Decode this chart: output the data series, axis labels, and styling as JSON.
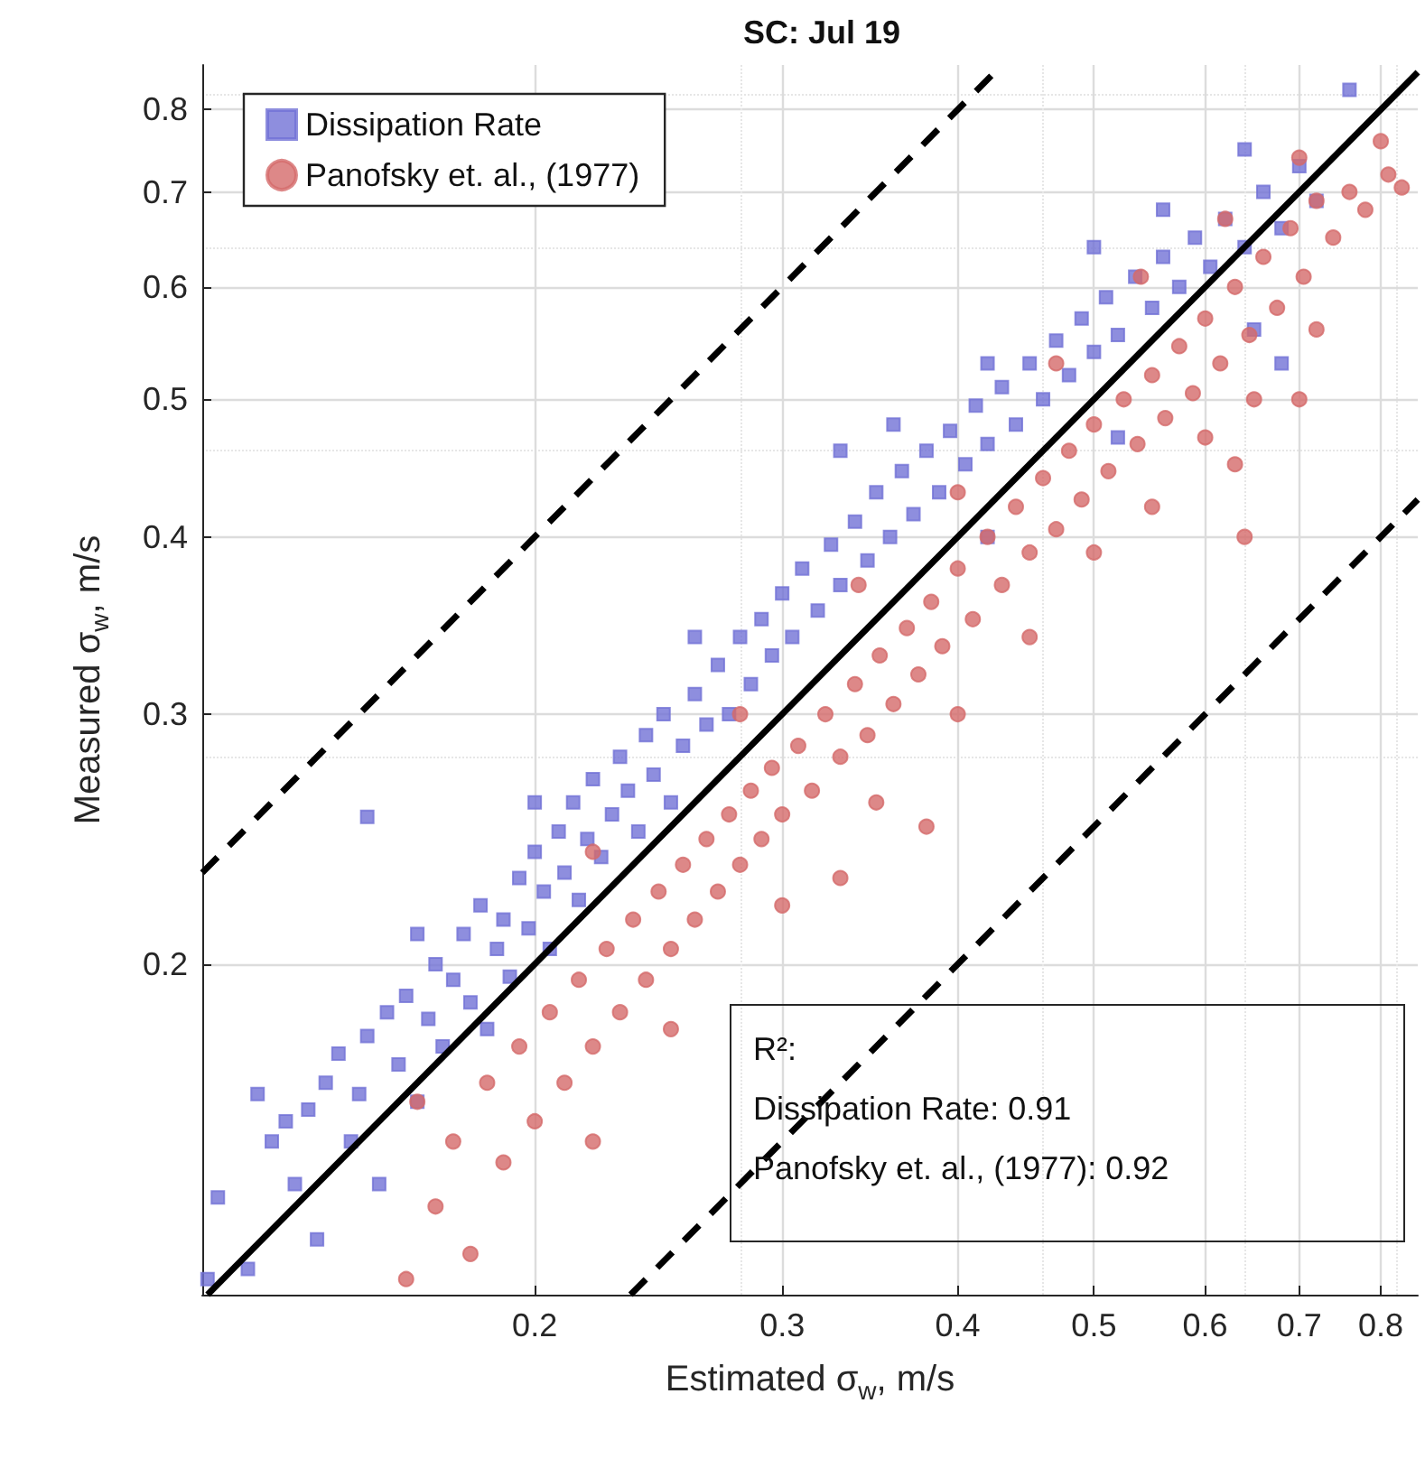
{
  "chart_data": {
    "type": "scatter",
    "title": "SC: Jul 19",
    "xlabel": "Estimated σ$_{w}$, m/s",
    "ylabel": "Measured σ$_{w}$, m/s",
    "log": "xy",
    "grid": true,
    "legend": "top left",
    "xlim": [
      0.116,
      0.85
    ],
    "ylim": [
      0.117,
      0.86
    ],
    "xticks": [
      0.2,
      0.3,
      0.4,
      0.5,
      0.6,
      0.7,
      0.8
    ],
    "yticks": [
      0.2,
      0.3,
      0.4,
      0.5,
      0.6,
      0.7,
      0.8
    ],
    "annotations": [
      "R²:",
      "Dissipation Rate: 0.91",
      "Panofsky et. al., (1977): 0.92"
    ],
    "series": [
      {
        "name": "Dissipation Rate",
        "type": "scatter",
        "marker": "square",
        "color": "#7272d6",
        "x": [
          0.117,
          0.119,
          0.125,
          0.127,
          0.13,
          0.133,
          0.135,
          0.138,
          0.14,
          0.142,
          0.145,
          0.148,
          0.15,
          0.152,
          0.155,
          0.157,
          0.16,
          0.162,
          0.165,
          0.168,
          0.17,
          0.172,
          0.175,
          0.178,
          0.18,
          0.183,
          0.185,
          0.188,
          0.19,
          0.192,
          0.195,
          0.198,
          0.2,
          0.203,
          0.205,
          0.208,
          0.21,
          0.213,
          0.215,
          0.218,
          0.22,
          0.223,
          0.227,
          0.23,
          0.233,
          0.237,
          0.24,
          0.243,
          0.247,
          0.25,
          0.255,
          0.26,
          0.265,
          0.27,
          0.275,
          0.28,
          0.285,
          0.29,
          0.295,
          0.3,
          0.305,
          0.31,
          0.318,
          0.325,
          0.33,
          0.338,
          0.345,
          0.35,
          0.358,
          0.365,
          0.372,
          0.38,
          0.388,
          0.395,
          0.405,
          0.412,
          0.42,
          0.43,
          0.44,
          0.45,
          0.46,
          0.47,
          0.48,
          0.49,
          0.5,
          0.51,
          0.52,
          0.535,
          0.55,
          0.56,
          0.575,
          0.59,
          0.605,
          0.62,
          0.64,
          0.66,
          0.68,
          0.7,
          0.72,
          0.76,
          0.64,
          0.56,
          0.5,
          0.42,
          0.36,
          0.33,
          0.26,
          0.2,
          0.165,
          0.42,
          0.52,
          0.65,
          0.68,
          0.152
        ],
        "values": [
          0.12,
          0.137,
          0.122,
          0.162,
          0.15,
          0.155,
          0.14,
          0.158,
          0.128,
          0.165,
          0.173,
          0.15,
          0.162,
          0.178,
          0.14,
          0.185,
          0.17,
          0.19,
          0.16,
          0.183,
          0.2,
          0.175,
          0.195,
          0.21,
          0.188,
          0.22,
          0.18,
          0.205,
          0.215,
          0.196,
          0.23,
          0.212,
          0.24,
          0.225,
          0.205,
          0.248,
          0.232,
          0.26,
          0.222,
          0.245,
          0.27,
          0.238,
          0.255,
          0.28,
          0.265,
          0.248,
          0.29,
          0.272,
          0.3,
          0.26,
          0.285,
          0.31,
          0.295,
          0.325,
          0.3,
          0.34,
          0.315,
          0.35,
          0.33,
          0.365,
          0.34,
          0.38,
          0.355,
          0.395,
          0.37,
          0.41,
          0.385,
          0.43,
          0.4,
          0.445,
          0.415,
          0.46,
          0.43,
          0.475,
          0.45,
          0.495,
          0.465,
          0.51,
          0.48,
          0.53,
          0.5,
          0.55,
          0.52,
          0.57,
          0.54,
          0.59,
          0.555,
          0.61,
          0.58,
          0.63,
          0.6,
          0.65,
          0.62,
          0.67,
          0.64,
          0.7,
          0.66,
          0.73,
          0.69,
          0.826,
          0.75,
          0.68,
          0.64,
          0.53,
          0.48,
          0.46,
          0.34,
          0.26,
          0.21,
          0.4,
          0.47,
          0.56,
          0.53,
          0.254
        ]
      },
      {
        "name": "Panofsky et. al., (1977)",
        "type": "scatter",
        "marker": "circle",
        "color": "#d46a6a",
        "x": [
          0.162,
          0.165,
          0.17,
          0.175,
          0.18,
          0.185,
          0.19,
          0.195,
          0.2,
          0.205,
          0.21,
          0.215,
          0.22,
          0.225,
          0.23,
          0.235,
          0.24,
          0.245,
          0.25,
          0.255,
          0.26,
          0.265,
          0.27,
          0.275,
          0.28,
          0.285,
          0.29,
          0.295,
          0.3,
          0.308,
          0.315,
          0.322,
          0.33,
          0.338,
          0.345,
          0.352,
          0.36,
          0.368,
          0.375,
          0.383,
          0.39,
          0.4,
          0.41,
          0.42,
          0.43,
          0.44,
          0.45,
          0.46,
          0.47,
          0.48,
          0.49,
          0.5,
          0.512,
          0.525,
          0.537,
          0.55,
          0.562,
          0.575,
          0.588,
          0.6,
          0.615,
          0.63,
          0.645,
          0.66,
          0.675,
          0.69,
          0.705,
          0.72,
          0.74,
          0.76,
          0.78,
          0.81,
          0.828,
          0.8,
          0.7,
          0.62,
          0.54,
          0.47,
          0.4,
          0.34,
          0.28,
          0.22,
          0.6,
          0.55,
          0.5,
          0.45,
          0.4,
          0.35,
          0.3,
          0.25,
          0.22,
          0.65,
          0.72,
          0.7,
          0.63,
          0.38,
          0.33,
          0.64
        ],
        "values": [
          0.12,
          0.16,
          0.135,
          0.15,
          0.125,
          0.165,
          0.145,
          0.175,
          0.155,
          0.185,
          0.165,
          0.195,
          0.175,
          0.205,
          0.185,
          0.215,
          0.195,
          0.225,
          0.205,
          0.235,
          0.215,
          0.245,
          0.225,
          0.255,
          0.235,
          0.265,
          0.245,
          0.275,
          0.255,
          0.285,
          0.265,
          0.3,
          0.28,
          0.315,
          0.29,
          0.33,
          0.305,
          0.345,
          0.32,
          0.36,
          0.335,
          0.38,
          0.35,
          0.4,
          0.37,
          0.42,
          0.39,
          0.44,
          0.405,
          0.46,
          0.425,
          0.48,
          0.445,
          0.5,
          0.465,
          0.52,
          0.485,
          0.545,
          0.505,
          0.57,
          0.53,
          0.6,
          0.555,
          0.63,
          0.58,
          0.66,
          0.61,
          0.69,
          0.65,
          0.7,
          0.68,
          0.72,
          0.705,
          0.76,
          0.74,
          0.67,
          0.61,
          0.53,
          0.43,
          0.37,
          0.3,
          0.24,
          0.47,
          0.42,
          0.39,
          0.34,
          0.3,
          0.26,
          0.22,
          0.18,
          0.15,
          0.5,
          0.56,
          0.5,
          0.45,
          0.25,
          0.23,
          0.4
        ]
      },
      {
        "type": "line",
        "color": "#000000",
        "line_style": "solid",
        "x": [
          0.117,
          0.85
        ],
        "values": [
          0.117,
          0.85
        ]
      },
      {
        "type": "line",
        "color": "#000000",
        "line_style": "dashed",
        "x": [
          0.116,
          0.43
        ],
        "values": [
          0.232,
          0.86
        ]
      },
      {
        "type": "line",
        "color": "#000000",
        "line_style": "dashed",
        "x": [
          0.234,
          0.85
        ],
        "values": [
          0.117,
          0.425
        ]
      }
    ]
  }
}
